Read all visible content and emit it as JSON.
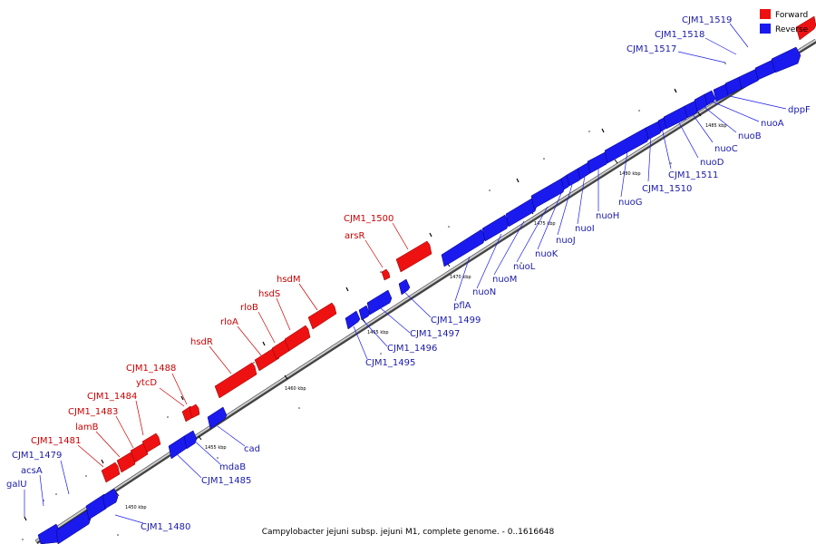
{
  "caption": "Campylobacter jejuni subsp. jejuni M1, complete genome. - 0..1616648",
  "legend": [
    {
      "label": "Forward",
      "color": "#ee1111"
    },
    {
      "label": "Reverse",
      "color": "#1a1aee"
    }
  ],
  "colors": {
    "forward": "#ee1111",
    "reverse": "#1a1aee",
    "label_forward": "#cc0000",
    "label_reverse": "#1a1aaa"
  },
  "scale_ticks": [
    "1450 kbp",
    "1455 kbp",
    "1460 kbp",
    "1465 kbp",
    "1470 kbp",
    "1475 kbp",
    "1480 kbp",
    "1485 kbp"
  ],
  "forward_labels": [
    "CJM1_1481",
    "lamB",
    "CJM1_1483",
    "CJM1_1484",
    "ytcD",
    "CJM1_1488",
    "hsdR",
    "rloA",
    "rloB",
    "hsdS",
    "hsdM",
    "arsR",
    "CJM1_1500"
  ],
  "reverse_labels": [
    "galU",
    "acsA",
    "CJM1_1479",
    "CJM1_1480",
    "CJM1_1485",
    "mdaB",
    "cad",
    "CJM1_1495",
    "CJM1_1496",
    "CJM1_1497",
    "CJM1_1499",
    "pflA",
    "nuoN",
    "nuoM",
    "nuoL",
    "nuoK",
    "nuoJ",
    "nuoI",
    "nuoH",
    "nuoG",
    "CJM1_1510",
    "CJM1_1511",
    "nuoD",
    "nuoC",
    "nuoB",
    "nuoA",
    "dppF",
    "CJM1_1517",
    "CJM1_1518",
    "CJM1_1519"
  ]
}
